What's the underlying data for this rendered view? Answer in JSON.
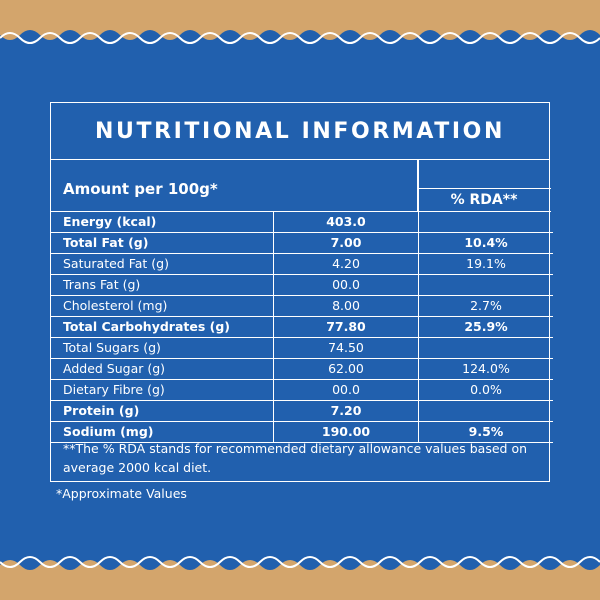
{
  "colors": {
    "background_tan": "#d3a56c",
    "panel_blue": "#2160ae",
    "text": "#ffffff"
  },
  "title": "NUTRITIONAL INFORMATION",
  "amount_label": "Amount per 100g*",
  "rda_label": "% RDA**",
  "rows": [
    {
      "name": "Energy (kcal)",
      "value": "403.0",
      "rda": "",
      "bold": true
    },
    {
      "name": "Total Fat (g)",
      "value": "7.00",
      "rda": "10.4%",
      "bold": true
    },
    {
      "name": "Saturated Fat (g)",
      "value": "4.20",
      "rda": "19.1%",
      "bold": false
    },
    {
      "name": "Trans Fat (g)",
      "value": "00.0",
      "rda": "",
      "bold": false
    },
    {
      "name": "Cholesterol (mg)",
      "value": "8.00",
      "rda": "2.7%",
      "bold": false
    },
    {
      "name": "Total Carbohydrates (g)",
      "value": "77.80",
      "rda": "25.9%",
      "bold": true
    },
    {
      "name": "Total Sugars (g)",
      "value": "74.50",
      "rda": "",
      "bold": false
    },
    {
      "name": "Added  Sugar (g)",
      "value": "62.00",
      "rda": "124.0%",
      "bold": false
    },
    {
      "name": "Dietary Fibre (g)",
      "value": "00.0",
      "rda": "0.0%",
      "bold": false
    },
    {
      "name": "Protein (g)",
      "value": "7.20",
      "rda": "",
      "bold": true
    },
    {
      "name": "Sodium (mg)",
      "value": "190.00",
      "rda": "9.5%",
      "bold": true
    }
  ],
  "footnote": "**The % RDA stands for recommended dietary allowance values based on average 2000 kcal diet.",
  "approx_note": "*Approximate Values"
}
